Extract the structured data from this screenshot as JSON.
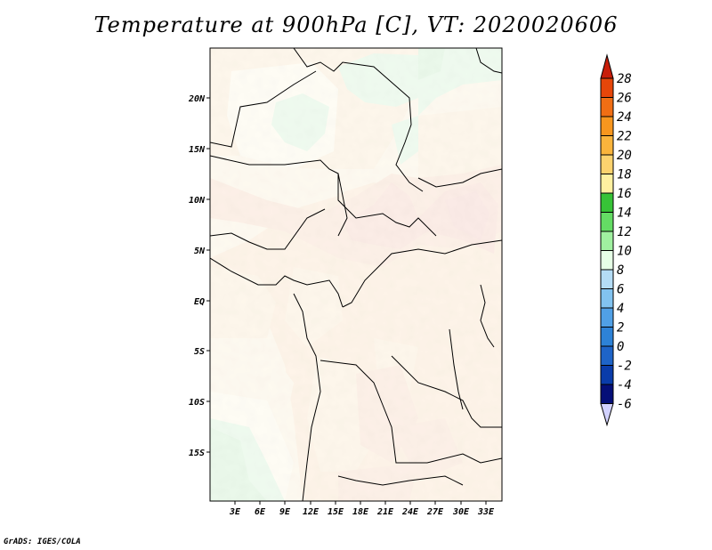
{
  "title": "Temperature at 900hPa [C], VT: 2020020606",
  "credit": "GrADS: IGES/COLA",
  "map": {
    "lat_labels": [
      "20N",
      "15N",
      "10N",
      "5N",
      "EQ",
      "5S",
      "10S",
      "15S"
    ],
    "lon_labels": [
      "3E",
      "6E",
      "9E",
      "12E",
      "15E",
      "18E",
      "21E",
      "24E",
      "27E",
      "30E",
      "33E"
    ]
  },
  "colorbar": {
    "labels": [
      "28",
      "26",
      "24",
      "22",
      "20",
      "18",
      "16",
      "14",
      "12",
      "10",
      "8",
      "6",
      "4",
      "2",
      "0",
      "-2",
      "-4",
      "-6"
    ],
    "colors": [
      "#c81e0a",
      "#e6460a",
      "#f06e14",
      "#f7961e",
      "#fab43c",
      "#fcd26e",
      "#fff0a0",
      "#37c337",
      "#64dc64",
      "#a0f0a0",
      "#e6ffe6",
      "#b4dcf5",
      "#82c3f0",
      "#50a0e6",
      "#2d82d7",
      "#1e64c8",
      "#0a3caa",
      "#050f78",
      "#d2d2ff"
    ]
  }
}
